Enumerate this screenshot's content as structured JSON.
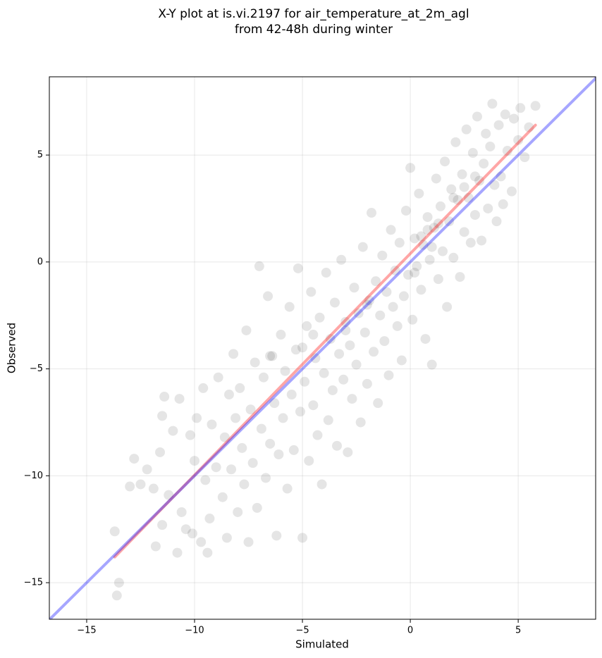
{
  "chart_data": {
    "type": "scatter",
    "title": [
      "X-Y plot at is.vi.2197 for air_temperature_at_2m_agl",
      "from 42-48h during winter"
    ],
    "x_label": "Simulated",
    "y_label": "Observed",
    "xlim": [
      -16.73,
      8.59
    ],
    "ylim": [
      -16.71,
      8.66
    ],
    "xticks": [
      {
        "value": -15,
        "label": "−15"
      },
      {
        "value": -10,
        "label": "−10"
      },
      {
        "value": -5,
        "label": "−5"
      },
      0,
      5
    ],
    "yticks": [
      {
        "value": -15,
        "label": "−15"
      },
      {
        "value": -10,
        "label": "−10"
      },
      {
        "value": -5,
        "label": "−5"
      },
      0,
      5
    ],
    "grid": true,
    "series": [
      {
        "mode": "markers",
        "color": "#000000",
        "alpha": 0.1,
        "x": [
          -13.7,
          -13.6,
          -13.5,
          -13.0,
          -12.8,
          -12.5,
          -12.2,
          -11.9,
          -11.8,
          -11.6,
          -11.5,
          -11.4,
          -11.5,
          -11.2,
          -11.0,
          -10.8,
          -10.7,
          -10.6,
          -10.4,
          -10.2,
          -10.1,
          -10.0,
          -9.9,
          -9.7,
          -9.6,
          -9.5,
          -9.4,
          -9.3,
          -9.2,
          -9.0,
          -8.9,
          -8.7,
          -8.6,
          -8.5,
          -8.4,
          -8.3,
          -8.2,
          -8.1,
          -8.0,
          -7.9,
          -7.8,
          -7.7,
          -7.6,
          -7.5,
          -7.4,
          -7.3,
          -7.2,
          -7.1,
          -7.0,
          -6.9,
          -6.8,
          -6.7,
          -6.6,
          -6.5,
          -6.4,
          -6.3,
          -6.2,
          -6.1,
          -6.0,
          -5.9,
          -5.8,
          -5.7,
          -5.6,
          -5.5,
          -5.4,
          -5.3,
          -5.2,
          -5.1,
          -5.0,
          -4.9,
          -4.8,
          -4.7,
          -4.6,
          -4.5,
          -4.4,
          -4.3,
          -4.2,
          -4.1,
          -4.0,
          -3.9,
          -3.8,
          -3.7,
          -3.6,
          -3.5,
          -3.4,
          -3.3,
          -3.2,
          -3.1,
          -3.0,
          -2.9,
          -2.8,
          -2.7,
          -2.6,
          -2.5,
          -2.4,
          -2.3,
          -2.2,
          -2.1,
          -2.0,
          -1.9,
          -1.8,
          -1.7,
          -1.6,
          -1.5,
          -1.4,
          -1.3,
          -1.2,
          -1.1,
          -1.0,
          -0.9,
          -0.8,
          -0.7,
          -0.6,
          -0.5,
          -0.4,
          -0.3,
          -0.2,
          -0.1,
          0.0,
          0.1,
          0.2,
          0.3,
          0.4,
          0.5,
          0.6,
          0.7,
          0.8,
          0.9,
          1.0,
          1.1,
          1.2,
          1.3,
          1.4,
          1.5,
          1.6,
          1.7,
          1.8,
          1.9,
          2.0,
          2.1,
          2.2,
          2.3,
          2.4,
          2.5,
          2.6,
          2.7,
          2.8,
          2.9,
          3.0,
          3.1,
          3.2,
          3.3,
          3.4,
          3.5,
          3.6,
          3.7,
          3.8,
          3.9,
          4.0,
          4.1,
          4.2,
          4.3,
          4.4,
          4.5,
          4.7,
          4.8,
          5.0,
          5.1,
          5.3,
          5.5,
          5.8,
          0.5,
          1.0,
          0.8,
          1.3,
          0.2,
          -6.5,
          -5.0,
          -4.5,
          -3.0,
          -2.0,
          2.0,
          2.5,
          3.0
        ],
        "values": [
          -12.6,
          -15.6,
          -15.0,
          -10.5,
          -9.2,
          -10.4,
          -9.7,
          -10.6,
          -13.3,
          -8.9,
          -7.2,
          -6.3,
          -12.3,
          -10.9,
          -7.9,
          -13.6,
          -6.4,
          -11.7,
          -12.5,
          -8.1,
          -12.7,
          -9.3,
          -7.3,
          -13.1,
          -5.9,
          -10.2,
          -13.6,
          -12.0,
          -7.6,
          -9.6,
          -5.4,
          -11.0,
          -8.2,
          -12.9,
          -6.2,
          -9.7,
          -4.3,
          -7.3,
          -11.7,
          -5.9,
          -8.7,
          -10.4,
          -3.2,
          -13.1,
          -6.9,
          -9.4,
          -4.7,
          -11.5,
          -0.2,
          -7.8,
          -5.4,
          -10.1,
          -1.6,
          -8.5,
          -4.4,
          -6.6,
          -12.8,
          -9.0,
          -3.4,
          -7.3,
          -5.1,
          -10.6,
          -2.1,
          -6.2,
          -8.8,
          -4.1,
          -0.3,
          -7.0,
          -12.9,
          -5.6,
          -3.0,
          -9.3,
          -1.4,
          -6.7,
          -4.5,
          -8.1,
          -2.6,
          -10.4,
          -5.2,
          -0.5,
          -7.4,
          -3.6,
          -6.0,
          -1.9,
          -8.6,
          -4.3,
          0.1,
          -5.5,
          -2.8,
          -8.9,
          -3.9,
          -6.4,
          -1.2,
          -4.8,
          -2.4,
          -7.5,
          0.7,
          -3.3,
          -5.7,
          -1.8,
          2.3,
          -4.2,
          -0.9,
          -6.6,
          -2.5,
          0.3,
          -3.7,
          -1.4,
          -5.3,
          1.5,
          -2.1,
          -0.4,
          -3.0,
          0.9,
          -4.6,
          -1.6,
          2.4,
          -0.6,
          4.4,
          -2.7,
          1.1,
          -0.2,
          3.2,
          -1.3,
          0.8,
          -3.6,
          2.1,
          0.1,
          -4.8,
          1.6,
          3.9,
          -0.8,
          2.6,
          0.5,
          4.7,
          -2.1,
          1.9,
          3.4,
          0.2,
          5.6,
          2.9,
          -0.7,
          4.1,
          1.4,
          6.2,
          3.0,
          0.9,
          5.1,
          2.2,
          6.8,
          3.8,
          1.0,
          4.6,
          6.0,
          2.5,
          5.4,
          7.4,
          3.6,
          1.9,
          6.4,
          4.0,
          2.7,
          6.9,
          5.2,
          3.3,
          6.7,
          5.7,
          7.2,
          4.9,
          6.3,
          7.3,
          1.2,
          0.7,
          1.5,
          1.8,
          -0.5,
          -4.4,
          -4.0,
          -3.4,
          -3.2,
          -2.0,
          3.0,
          3.5,
          4.0
        ]
      },
      {
        "mode": "line",
        "color": "#ff0000",
        "alpha": 0.35,
        "x": [
          -13.7,
          5.8
        ],
        "values": [
          -13.8,
          6.4
        ]
      },
      {
        "mode": "line",
        "color": "#0000ff",
        "alpha": 0.35,
        "x": [
          -16.73,
          8.59
        ],
        "values": [
          -16.73,
          8.59
        ]
      }
    ]
  }
}
